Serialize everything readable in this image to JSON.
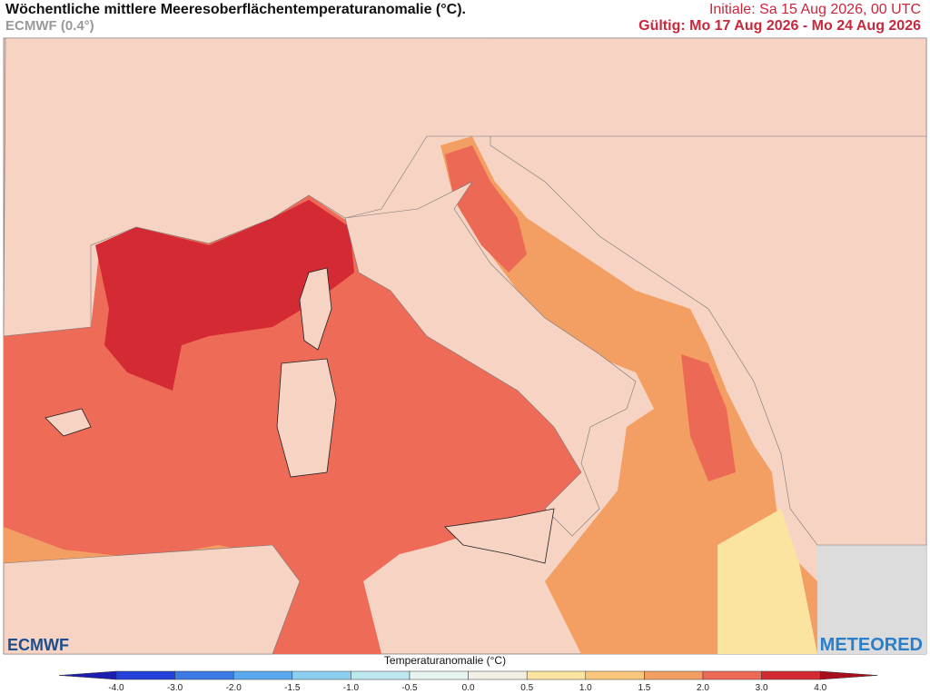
{
  "header": {
    "title": "Wöchentliche mittlere Meeresoberflächentemperaturanomalie (°C).",
    "model": "ECMWF (0.4°)",
    "init": "Initiale: Sa 15 Aug 2026, 00 UTC",
    "valid": "Gültig: Mo 17 Aug 2026 - Mo 24 Aug 2026"
  },
  "logos": {
    "left": "ECMWF",
    "right": "METEORED"
  },
  "legend": {
    "label": "Temperaturanomalie (°C)",
    "ticks": [
      "-4.0",
      "-3.0",
      "-2.0",
      "-1.5",
      "-1.0",
      "-0.5",
      "0.0",
      "0.5",
      "1.0",
      "1.5",
      "2.0",
      "3.0",
      "4.0"
    ],
    "colors": [
      "#2340d8",
      "#3c7ae6",
      "#5aa8ee",
      "#8ccff0",
      "#bde8f0",
      "#e8f4f2",
      "#f4efe6",
      "#fbe4a0",
      "#f9c67c",
      "#f39e62",
      "#ec6956",
      "#d32a33"
    ],
    "under_color": "#1c1cae",
    "over_color": "#a80f1e"
  }
}
